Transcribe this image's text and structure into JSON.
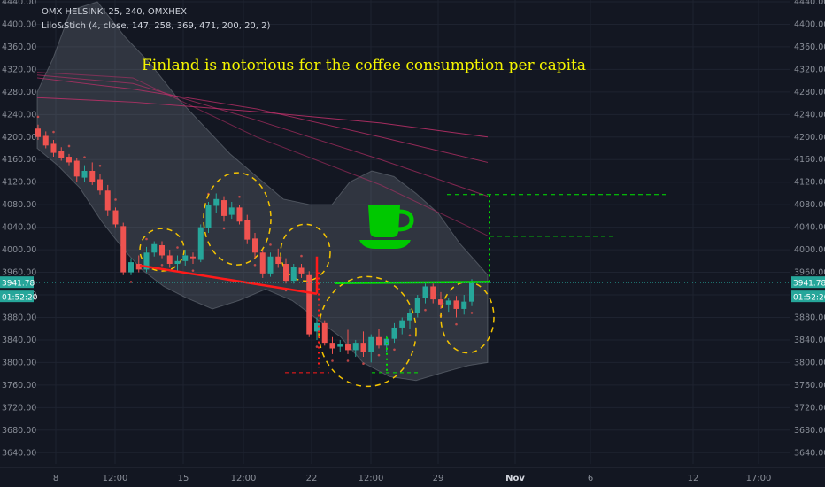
{
  "header": {
    "symbol_line": "OMX HELSINKI 25, 240, OMXHEX",
    "indicator_line": "Lilo&Stich (4, close, 147, 258, 369, 471, 200, 20, 2)"
  },
  "annotation": {
    "text": "Finland is notorious for the coffee consumption per capita",
    "color": "#f5f500"
  },
  "price_badges": {
    "price": "3941.78",
    "countdown": "01:52:20"
  },
  "colors": {
    "background": "#131722",
    "up": "#26a69a",
    "down": "#ef5350",
    "bull_line": "#00e600",
    "bear_line": "#ff1a1a",
    "band": "#9aa3ad",
    "ellipse": "#f5c400",
    "ma": "#c0306a",
    "axis_text": "#8a8f99"
  },
  "icon": "coffee-cup-icon",
  "chart_data": {
    "type": "candlestick",
    "ylim": [
      3620,
      4440
    ],
    "y_ticks": [
      "4440.00",
      "4400.00",
      "4360.00",
      "4320.00",
      "4280.00",
      "4240.00",
      "4200.00",
      "4160.00",
      "4120.00",
      "4080.00",
      "4040.00",
      "4000.00",
      "3960.00",
      "3920.00",
      "3880.00",
      "3840.00",
      "3800.00",
      "3760.00",
      "3720.00",
      "3680.00",
      "3640.00"
    ],
    "x_ticks": [
      "8",
      "12:00",
      "15",
      "12:00",
      "22",
      "12:00",
      "29",
      "Nov",
      "6",
      "12",
      "17:00"
    ],
    "candles": [
      {
        "o": 4215,
        "h": 4222,
        "l": 4195,
        "c": 4200
      },
      {
        "o": 4202,
        "h": 4210,
        "l": 4180,
        "c": 4185
      },
      {
        "o": 4188,
        "h": 4195,
        "l": 4165,
        "c": 4172
      },
      {
        "o": 4175,
        "h": 4182,
        "l": 4158,
        "c": 4162
      },
      {
        "o": 4165,
        "h": 4170,
        "l": 4150,
        "c": 4155
      },
      {
        "o": 4158,
        "h": 4162,
        "l": 4120,
        "c": 4130
      },
      {
        "o": 4128,
        "h": 4150,
        "l": 4120,
        "c": 4140
      },
      {
        "o": 4140,
        "h": 4155,
        "l": 4115,
        "c": 4120
      },
      {
        "o": 4125,
        "h": 4135,
        "l": 4098,
        "c": 4105
      },
      {
        "o": 4105,
        "h": 4115,
        "l": 4060,
        "c": 4070
      },
      {
        "o": 4070,
        "h": 4075,
        "l": 4040,
        "c": 4045
      },
      {
        "o": 4042,
        "h": 4048,
        "l": 3955,
        "c": 3960
      },
      {
        "o": 3960,
        "h": 3985,
        "l": 3955,
        "c": 3978
      },
      {
        "o": 3975,
        "h": 3990,
        "l": 3960,
        "c": 3965
      },
      {
        "o": 3965,
        "h": 4005,
        "l": 3960,
        "c": 3995
      },
      {
        "o": 3995,
        "h": 4015,
        "l": 3988,
        "c": 4010
      },
      {
        "o": 4008,
        "h": 4015,
        "l": 3985,
        "c": 3990
      },
      {
        "o": 3990,
        "h": 4000,
        "l": 3968,
        "c": 3975
      },
      {
        "o": 3975,
        "h": 3990,
        "l": 3960,
        "c": 3980
      },
      {
        "o": 3980,
        "h": 4000,
        "l": 3972,
        "c": 3990
      },
      {
        "o": 3988,
        "h": 3995,
        "l": 3975,
        "c": 3985
      },
      {
        "o": 3982,
        "h": 4045,
        "l": 3978,
        "c": 4040
      },
      {
        "o": 4038,
        "h": 4085,
        "l": 4030,
        "c": 4080
      },
      {
        "o": 4078,
        "h": 4100,
        "l": 4065,
        "c": 4090
      },
      {
        "o": 4088,
        "h": 4095,
        "l": 4050,
        "c": 4060
      },
      {
        "o": 4062,
        "h": 4085,
        "l": 4055,
        "c": 4075
      },
      {
        "o": 4075,
        "h": 4080,
        "l": 4045,
        "c": 4050
      },
      {
        "o": 4052,
        "h": 4062,
        "l": 4010,
        "c": 4018
      },
      {
        "o": 4020,
        "h": 4030,
        "l": 3985,
        "c": 3995
      },
      {
        "o": 3995,
        "h": 4000,
        "l": 3950,
        "c": 3958
      },
      {
        "o": 3958,
        "h": 3995,
        "l": 3952,
        "c": 3988
      },
      {
        "o": 3988,
        "h": 4002,
        "l": 3968,
        "c": 3975
      },
      {
        "o": 3975,
        "h": 3985,
        "l": 3940,
        "c": 3945
      },
      {
        "o": 3945,
        "h": 3975,
        "l": 3940,
        "c": 3970
      },
      {
        "o": 3968,
        "h": 3975,
        "l": 3950,
        "c": 3958
      },
      {
        "o": 3955,
        "h": 3962,
        "l": 3845,
        "c": 3850
      },
      {
        "o": 3855,
        "h": 3880,
        "l": 3840,
        "c": 3870
      },
      {
        "o": 3870,
        "h": 3875,
        "l": 3830,
        "c": 3835
      },
      {
        "o": 3835,
        "h": 3845,
        "l": 3815,
        "c": 3825
      },
      {
        "o": 3828,
        "h": 3840,
        "l": 3818,
        "c": 3832
      },
      {
        "o": 3832,
        "h": 3858,
        "l": 3815,
        "c": 3822
      },
      {
        "o": 3822,
        "h": 3840,
        "l": 3810,
        "c": 3835
      },
      {
        "o": 3835,
        "h": 3855,
        "l": 3810,
        "c": 3818
      },
      {
        "o": 3818,
        "h": 3850,
        "l": 3800,
        "c": 3845
      },
      {
        "o": 3845,
        "h": 3860,
        "l": 3825,
        "c": 3830
      },
      {
        "o": 3830,
        "h": 3848,
        "l": 3818,
        "c": 3842
      },
      {
        "o": 3842,
        "h": 3870,
        "l": 3835,
        "c": 3862
      },
      {
        "o": 3862,
        "h": 3880,
        "l": 3850,
        "c": 3875
      },
      {
        "o": 3875,
        "h": 3895,
        "l": 3860,
        "c": 3888
      },
      {
        "o": 3888,
        "h": 3920,
        "l": 3880,
        "c": 3915
      },
      {
        "o": 3915,
        "h": 3940,
        "l": 3905,
        "c": 3935
      },
      {
        "o": 3935,
        "h": 3940,
        "l": 3905,
        "c": 3912
      },
      {
        "o": 3912,
        "h": 3925,
        "l": 3895,
        "c": 3903
      },
      {
        "o": 3903,
        "h": 3915,
        "l": 3890,
        "c": 3910
      },
      {
        "o": 3910,
        "h": 3918,
        "l": 3880,
        "c": 3895
      },
      {
        "o": 3895,
        "h": 3920,
        "l": 3885,
        "c": 3908
      },
      {
        "o": 3908,
        "h": 3948,
        "l": 3900,
        "c": 3941.78
      }
    ]
  }
}
